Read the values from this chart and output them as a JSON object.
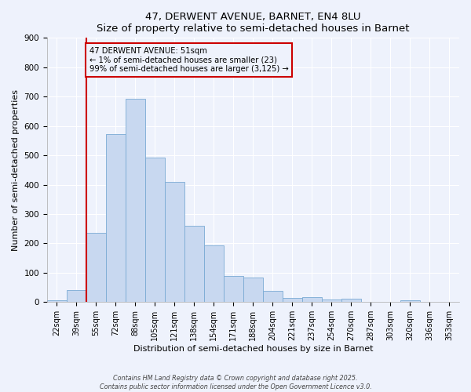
{
  "title": "47, DERWENT AVENUE, BARNET, EN4 8LU",
  "subtitle": "Size of property relative to semi-detached houses in Barnet",
  "xlabel": "Distribution of semi-detached houses by size in Barnet",
  "ylabel": "Number of semi-detached properties",
  "bin_labels": [
    "22sqm",
    "39sqm",
    "55sqm",
    "72sqm",
    "88sqm",
    "105sqm",
    "121sqm",
    "138sqm",
    "154sqm",
    "171sqm",
    "188sqm",
    "204sqm",
    "221sqm",
    "237sqm",
    "254sqm",
    "270sqm",
    "287sqm",
    "303sqm",
    "320sqm",
    "336sqm",
    "353sqm"
  ],
  "bar_values": [
    7,
    42,
    237,
    573,
    693,
    493,
    410,
    260,
    193,
    90,
    83,
    38,
    15,
    18,
    10,
    12,
    0,
    0,
    5,
    0,
    0
  ],
  "bar_color": "#c8d8f0",
  "bar_edge_color": "#7aaad4",
  "vline_x_index": 2,
  "vline_color": "#cc0000",
  "annotation_text": "47 DERWENT AVENUE: 51sqm\n← 1% of semi-detached houses are smaller (23)\n99% of semi-detached houses are larger (3,125) →",
  "annotation_box_edge": "#cc0000",
  "ylim": [
    0,
    900
  ],
  "yticks": [
    0,
    100,
    200,
    300,
    400,
    500,
    600,
    700,
    800,
    900
  ],
  "footer1": "Contains HM Land Registry data © Crown copyright and database right 2025.",
  "footer2": "Contains public sector information licensed under the Open Government Licence v3.0.",
  "bg_color": "#eef2fc",
  "grid_color": "#ffffff"
}
